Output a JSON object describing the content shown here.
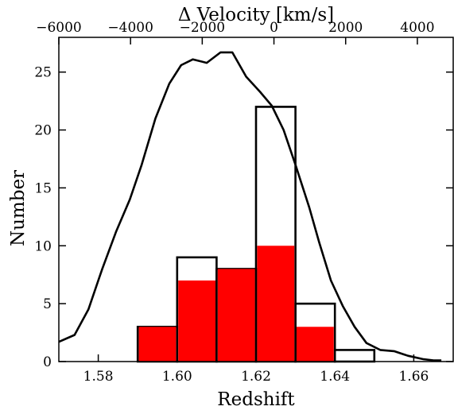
{
  "chart_data": {
    "type": "bar",
    "xlabel": "Redshift",
    "ylabel": "Number",
    "top_xlabel": "Δ Velocity [km/s]",
    "xlim": [
      1.57,
      1.67
    ],
    "ylim": [
      0,
      28
    ],
    "top_xlim": [
      -6000,
      5000
    ],
    "x_ticks": [
      1.58,
      1.6,
      1.62,
      1.64,
      1.66
    ],
    "x_tick_labels": [
      "1.58",
      "1.60",
      "1.62",
      "1.64",
      "1.66"
    ],
    "y_ticks": [
      0,
      5,
      10,
      15,
      20,
      25
    ],
    "y_tick_labels": [
      "0",
      "5",
      "10",
      "15",
      "20",
      "25"
    ],
    "top_x_ticks": [
      -6000,
      -4000,
      -2000,
      0,
      2000,
      4000
    ],
    "top_x_tick_labels": [
      "−6000",
      "−4000",
      "−2000",
      "0",
      "2000",
      "4000"
    ],
    "bin_edges": [
      1.59,
      1.6,
      1.61,
      1.62,
      1.63,
      1.64,
      1.65
    ],
    "series": [
      {
        "fill": "none",
        "edge": "#000000",
        "values": [
          3,
          9,
          8,
          22,
          5,
          1
        ]
      },
      {
        "fill": "#ff0000",
        "edge": "#000000",
        "values": [
          3,
          7,
          8,
          10,
          3,
          0
        ]
      }
    ],
    "curve": {
      "color": "#000000",
      "x": [
        1.57,
        1.574,
        1.5775,
        1.581,
        1.5845,
        1.588,
        1.591,
        1.5945,
        1.598,
        1.601,
        1.604,
        1.6075,
        1.611,
        1.614,
        1.6175,
        1.621,
        1.624,
        1.627,
        1.63,
        1.6335,
        1.636,
        1.639,
        1.642,
        1.645,
        1.648,
        1.6515,
        1.655,
        1.6585,
        1.6625,
        1.665,
        1.667
      ],
      "y": [
        1.7,
        2.3,
        4.5,
        8.0,
        11.2,
        14.0,
        17.0,
        21.0,
        24.0,
        25.6,
        26.1,
        25.8,
        26.7,
        26.7,
        24.6,
        23.3,
        22.1,
        20.0,
        17.0,
        13.3,
        10.3,
        7.0,
        4.8,
        3.0,
        1.6,
        1.0,
        0.9,
        0.5,
        0.2,
        0.1,
        0.1
      ]
    },
    "grid": false,
    "legend": "none"
  }
}
